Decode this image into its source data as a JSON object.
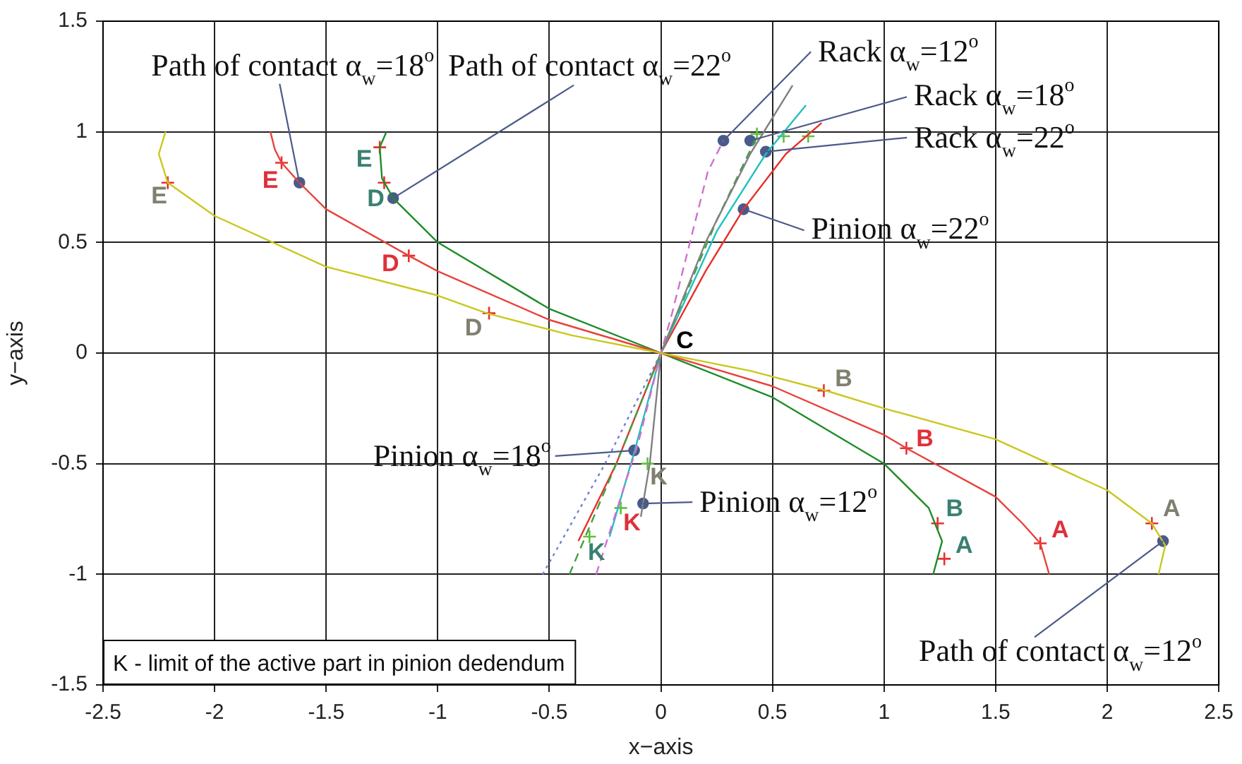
{
  "chart_data": {
    "type": "line",
    "xlabel": "x−axis",
    "ylabel": "y−axis",
    "xlim": [
      -2.5,
      2.5
    ],
    "ylim": [
      -1.5,
      1.5
    ],
    "xticks": [
      -2.5,
      -2,
      -1.5,
      -1,
      -0.5,
      0,
      0.5,
      1,
      1.5,
      2,
      2.5
    ],
    "yticks": [
      -1.5,
      -1,
      -0.5,
      0,
      0.5,
      1,
      1.5
    ],
    "grid": true,
    "legend": false,
    "marker": "none",
    "series": [
      {
        "color": "#c8c81e",
        "x": [
          -2.22,
          -2.25,
          -2.21,
          -2.0,
          -1.5,
          -1.0,
          -0.78,
          -0.4,
          0,
          0.4,
          0.74,
          1.0,
          1.5,
          2.0,
          2.2,
          2.26,
          2.23
        ],
        "values": [
          1.0,
          0.9,
          0.77,
          0.62,
          0.39,
          0.26,
          0.18,
          0.08,
          0,
          -0.08,
          -0.17,
          -0.25,
          -0.39,
          -0.62,
          -0.77,
          -0.87,
          -1.0
        ]
      },
      {
        "color": "#e8423c",
        "x": [
          -1.75,
          -1.73,
          -1.7,
          -1.62,
          -1.5,
          -1.13,
          -1.0,
          -0.5,
          0,
          0.5,
          1.0,
          1.1,
          1.5,
          1.62,
          1.7,
          1.74
        ],
        "values": [
          1.0,
          0.92,
          0.86,
          0.77,
          0.65,
          0.44,
          0.37,
          0.15,
          0,
          -0.15,
          -0.37,
          -0.43,
          -0.65,
          -0.77,
          -0.86,
          -1.0
        ]
      },
      {
        "color": "#1e8c28",
        "x": [
          -1.23,
          -1.26,
          -1.25,
          -1.2,
          -1.0,
          -0.5,
          0,
          0.5,
          1.0,
          1.2,
          1.26,
          1.22
        ],
        "values": [
          1.0,
          0.93,
          0.79,
          0.7,
          0.5,
          0.2,
          0,
          -0.2,
          -0.5,
          -0.7,
          -0.85,
          -1.0
        ]
      },
      {
        "color": "#d070d0",
        "line_style": "dashed",
        "x": [
          -0.29,
          -0.1,
          0,
          0.05,
          0.13,
          0.21,
          0.28
        ],
        "values": [
          -1.0,
          -0.4,
          0,
          0.18,
          0.5,
          0.82,
          0.96
        ]
      },
      {
        "color": "#7080d0",
        "line_style": "dotted",
        "x": [
          -0.53,
          -0.25,
          0
        ],
        "values": [
          -1.0,
          -0.5,
          0
        ]
      },
      {
        "color": "#808080",
        "x": [
          -0.09,
          -0.05,
          0,
          0.2,
          0.4,
          0.59
        ],
        "values": [
          -0.74,
          -0.5,
          0,
          0.5,
          0.9,
          1.21
        ]
      },
      {
        "color": "#40a040",
        "line_style": "dashed",
        "x": [
          -0.41,
          -0.2,
          0,
          0.25,
          0.43
        ],
        "values": [
          -1.0,
          -0.5,
          0,
          0.6,
          0.98
        ]
      },
      {
        "color": "#20c0c0",
        "x": [
          -0.23,
          -0.12,
          0,
          0.25,
          0.47,
          0.65
        ],
        "values": [
          -0.83,
          -0.45,
          0,
          0.55,
          0.9,
          1.12
        ]
      },
      {
        "color": "#e8302a",
        "x": [
          -0.37,
          -0.2,
          0,
          0.2,
          0.37,
          0.56,
          0.72
        ],
        "values": [
          -0.85,
          -0.5,
          0,
          0.37,
          0.65,
          0.9,
          1.04
        ]
      },
      {
        "type": "scatter",
        "marker": "cross",
        "color": "#e83030",
        "x": [
          -2.21,
          -0.77,
          0.73,
          2.2,
          -1.7,
          -1.13,
          1.1,
          1.7,
          -1.26,
          -1.24,
          1.24,
          1.27
        ],
        "values": [
          0.77,
          0.18,
          -0.17,
          -0.77,
          0.86,
          0.44,
          -0.43,
          -0.86,
          0.93,
          0.77,
          -0.77,
          -0.93
        ]
      },
      {
        "type": "scatter",
        "marker": "cross",
        "color": "#60c040",
        "x": [
          0.43,
          0.55,
          0.66,
          -0.32,
          -0.18,
          -0.06
        ],
        "values": [
          0.99,
          0.98,
          0.98,
          -0.83,
          -0.7,
          -0.5
        ]
      },
      {
        "type": "scatter",
        "marker": "circle",
        "color": "#4a5a8a",
        "x": [
          -1.62,
          -1.2,
          0.28,
          0.4,
          0.47,
          0.37,
          -0.12,
          -0.08,
          2.25
        ],
        "values": [
          0.77,
          0.7,
          0.96,
          0.96,
          0.91,
          0.65,
          -0.44,
          -0.68,
          -0.85
        ]
      }
    ],
    "annotations": [
      {
        "text": "Path of contact α$_{w}$=18$^{o}$",
        "x": -1.62,
        "y": 0.77
      },
      {
        "text": "Path of contact α$_{w}$=22$^{o}$",
        "x": -1.2,
        "y": 0.7
      },
      {
        "text": "Rack α$_{w}$=12$^{o}$",
        "x": 0.28,
        "y": 0.96
      },
      {
        "text": "Rack α$_{w}$=18$^{o}$",
        "x": 0.4,
        "y": 0.96
      },
      {
        "text": "Rack α$_{w}$=22$^{o}$",
        "x": 0.47,
        "y": 0.91
      },
      {
        "text": "Pinion α$_{w}$=22$^{o}$",
        "x": 0.37,
        "y": 0.65
      },
      {
        "text": "Pinion α$_{w}$=18$^{o}$",
        "x": -0.12,
        "y": -0.44
      },
      {
        "text": "Pinion α$_{w}$=12$^{o}$",
        "x": -0.08,
        "y": -0.68
      },
      {
        "text": "Path of contact α$_{w}$=12$^{o}$",
        "x": 2.25,
        "y": -0.85
      },
      {
        "text": "E",
        "x": -2.21,
        "y": 0.77
      },
      {
        "text": "E",
        "x": -1.7,
        "y": 0.86
      },
      {
        "text": "E",
        "x": -1.26,
        "y": 0.93
      },
      {
        "text": "D",
        "x": -1.24,
        "y": 0.77
      },
      {
        "text": "D",
        "x": -1.13,
        "y": 0.44
      },
      {
        "text": "D",
        "x": -0.77,
        "y": 0.18
      },
      {
        "text": "C",
        "x": 0,
        "y": 0
      },
      {
        "text": "B",
        "x": 0.73,
        "y": -0.17
      },
      {
        "text": "B",
        "x": 1.1,
        "y": -0.43
      },
      {
        "text": "B",
        "x": 1.24,
        "y": -0.77
      },
      {
        "text": "A",
        "x": 1.27,
        "y": -0.93
      },
      {
        "text": "A",
        "x": 1.7,
        "y": -0.86
      },
      {
        "text": "A",
        "x": 2.2,
        "y": -0.77
      },
      {
        "text": "K",
        "x": -0.06,
        "y": -0.5
      },
      {
        "text": "K",
        "x": -0.18,
        "y": -0.7
      },
      {
        "text": "K",
        "x": -0.32,
        "y": -0.83
      },
      "K - limit of the active part in pinion dedendum"
    ]
  }
}
